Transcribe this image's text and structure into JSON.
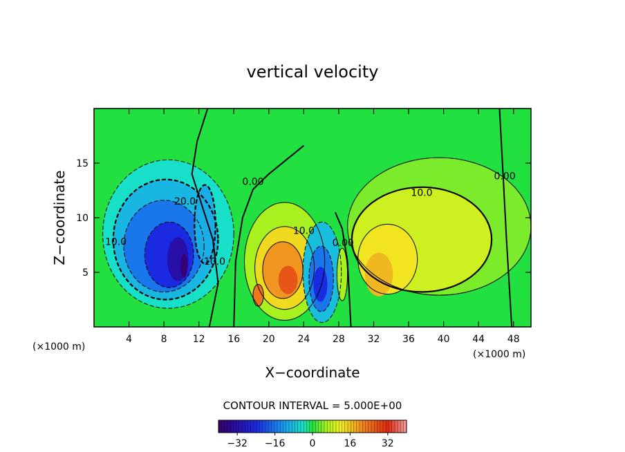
{
  "chart_data": {
    "type": "heatmap",
    "title": "vertical velocity",
    "xlabel": "X−coordinate",
    "ylabel": "Z−coordinate",
    "x_unit_left": "(×1000 m)",
    "x_unit_right": "(×1000 m)",
    "xlim": [
      0,
      50
    ],
    "ylim": [
      0,
      20
    ],
    "x_ticks": [
      4,
      8,
      12,
      16,
      20,
      24,
      28,
      32,
      36,
      40,
      44,
      48
    ],
    "y_ticks": [
      5,
      10,
      15
    ],
    "contour_interval_text": "CONTOUR INTERVAL = 5.000E+00",
    "contour_labels": [
      {
        "text": "10.0",
        "x": 2.5,
        "z": 7.5
      },
      {
        "text": "20.0",
        "x": 10.4,
        "z": 11.2
      },
      {
        "text": "10.0",
        "x": 13.8,
        "z": 5.7
      },
      {
        "text": "0.00",
        "x": 18.2,
        "z": 13.0
      },
      {
        "text": "10.0",
        "x": 24.0,
        "z": 8.5
      },
      {
        "text": "0.00",
        "x": 28.5,
        "z": 7.4
      },
      {
        "text": "10.0",
        "x": 37.5,
        "z": 12.0
      },
      {
        "text": "0.00",
        "x": 47.0,
        "z": 13.5
      }
    ],
    "colorbar": {
      "range": [
        -40,
        40
      ],
      "ticks": [
        -32,
        -16,
        0,
        16,
        32
      ],
      "tick_labels": [
        "−32",
        "−16",
        "0",
        "16",
        "32"
      ]
    },
    "field_features": [
      {
        "name": "strong downdraft",
        "x": 9.5,
        "z": 7.0,
        "value": -36
      },
      {
        "name": "secondary downdraft",
        "x": 12.5,
        "z": 9.0,
        "value": -14
      },
      {
        "name": "central updraft",
        "x": 22.0,
        "z": 5.0,
        "value": 27
      },
      {
        "name": "central downdraft",
        "x": 26.0,
        "z": 4.0,
        "value": -24
      },
      {
        "name": "eastern updraft",
        "x": 33.0,
        "z": 5.5,
        "value": 17
      },
      {
        "name": "broad weak updraft",
        "x": 39.0,
        "z": 9.0,
        "value": 9
      }
    ]
  }
}
